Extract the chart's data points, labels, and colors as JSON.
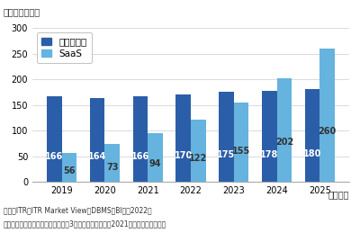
{
  "years": [
    "2019",
    "2020",
    "2021",
    "2022",
    "2023",
    "2024",
    "2025"
  ],
  "package_values": [
    166,
    164,
    166,
    170,
    175,
    178,
    180
  ],
  "saas_values": [
    56,
    73,
    94,
    122,
    155,
    202,
    260
  ],
  "package_color": "#2B5EA8",
  "saas_color": "#65B3DE",
  "ylabel_top": "（単位：億円）",
  "xlabel_right": "（年度）",
  "ylim": [
    0,
    300
  ],
  "yticks": [
    0,
    50,
    100,
    150,
    200,
    250,
    300
  ],
  "legend_package": "パッケージ",
  "legend_saas": "SaaS",
  "footnote1": "出典：ITR『ITR Market View：DBMS／BI市刄2022』",
  "footnote2": "＊ベンダーの売上金額を対象とし、3月期ベースで換算。2021年度以降は予測値。",
  "bar_width": 0.35,
  "label_fontsize": 7,
  "tick_fontsize": 7,
  "legend_fontsize": 7.5,
  "footnote_fontsize": 5.5,
  "bg_color": "#ffffff"
}
